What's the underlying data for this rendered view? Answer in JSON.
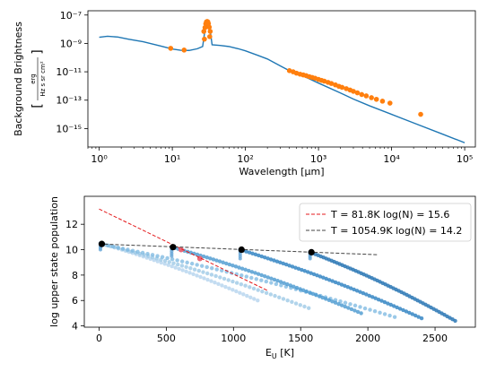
{
  "chart_data": [
    {
      "type": "line",
      "xlabel": "Wavelength [μm]",
      "ylabel": "Background Brightness",
      "ylabel_unit_num": "erg",
      "ylabel_unit_den": "Hz s sr cm²",
      "xscale": "log",
      "yscale": "log",
      "xlim": [
        0.7,
        140000
      ],
      "ylim": [
        5e-17,
        2e-07
      ],
      "x_ticks": [
        {
          "value": 1,
          "label": "10⁰"
        },
        {
          "value": 10,
          "label": "10¹"
        },
        {
          "value": 100,
          "label": "10²"
        },
        {
          "value": 1000,
          "label": "10³"
        },
        {
          "value": 10000,
          "label": "10⁴"
        },
        {
          "value": 100000,
          "label": "10⁵"
        }
      ],
      "y_ticks": [
        {
          "value": 1e-15,
          "label": "10⁻¹⁵"
        },
        {
          "value": 1e-13,
          "label": "10⁻¹³"
        },
        {
          "value": 1e-11,
          "label": "10⁻¹¹"
        },
        {
          "value": 1e-09,
          "label": "10⁻⁹"
        },
        {
          "value": 1e-07,
          "label": "10⁻⁷"
        }
      ],
      "series": [
        {
          "kind": "line",
          "color": "#1f77b4",
          "points": [
            [
              1.0,
              2.7e-09
            ],
            [
              1.3,
              3.2e-09
            ],
            [
              1.8,
              2.8e-09
            ],
            [
              2.5,
              2e-09
            ],
            [
              4,
              1.3e-09
            ],
            [
              7,
              6.5e-10
            ],
            [
              10,
              4e-10
            ],
            [
              13,
              3.3e-10
            ],
            [
              17,
              3.2e-10
            ],
            [
              22,
              4.2e-10
            ],
            [
              26,
              6e-10
            ],
            [
              28,
              9e-09
            ],
            [
              30,
              1.8e-08
            ],
            [
              33,
              8e-09
            ],
            [
              35,
              8e-10
            ],
            [
              45,
              7.2e-10
            ],
            [
              60,
              6e-10
            ],
            [
              80,
              4.2e-10
            ],
            [
              100,
              3e-10
            ],
            [
              150,
              1.4e-10
            ],
            [
              200,
              8e-11
            ],
            [
              300,
              2.6e-11
            ],
            [
              400,
              1.2e-11
            ],
            [
              600,
              5.5e-12
            ],
            [
              1000,
              1.6e-12
            ],
            [
              2000,
              3.2e-13
            ],
            [
              3000,
              1.2e-13
            ],
            [
              5000,
              4e-14
            ],
            [
              10000,
              1e-14
            ],
            [
              20000,
              2.5e-15
            ],
            [
              50000,
              4e-16
            ],
            [
              100000,
              1e-16
            ]
          ]
        },
        {
          "kind": "scatter",
          "color": "#ff7f0e",
          "points": [
            [
              9.5,
              4.5e-10
            ],
            [
              14.5,
              3.4e-10
            ],
            [
              27,
              7e-09
            ],
            [
              28,
              1.3e-08
            ],
            [
              28.7,
              2.4e-08
            ],
            [
              29.3,
              3.3e-08
            ],
            [
              30,
              3.5e-08
            ],
            [
              30.6,
              3.3e-08
            ],
            [
              31.2,
              2.5e-08
            ],
            [
              32,
              1.4e-08
            ],
            [
              33,
              7e-09
            ],
            [
              27.5,
              2e-09
            ],
            [
              32.5,
              3e-09
            ],
            [
              400,
              1.2e-11
            ],
            [
              450,
              1e-11
            ],
            [
              500,
              8e-12
            ],
            [
              560,
              6.8e-12
            ],
            [
              620,
              6e-12
            ],
            [
              680,
              5.3e-12
            ],
            [
              750,
              4.5e-12
            ],
            [
              820,
              4e-12
            ],
            [
              900,
              3.5e-12
            ],
            [
              1000,
              2.9e-12
            ],
            [
              1100,
              2.5e-12
            ],
            [
              1200,
              2.2e-12
            ],
            [
              1350,
              1.8e-12
            ],
            [
              1500,
              1.5e-12
            ],
            [
              1700,
              1.2e-12
            ],
            [
              1900,
              9.5e-13
            ],
            [
              2100,
              8e-13
            ],
            [
              2400,
              6.5e-13
            ],
            [
              2700,
              5.2e-13
            ],
            [
              3000,
              4.2e-13
            ],
            [
              3400,
              3.3e-13
            ],
            [
              3900,
              2.5e-13
            ],
            [
              4500,
              2e-13
            ],
            [
              5300,
              1.5e-13
            ],
            [
              6200,
              1.15e-13
            ],
            [
              7500,
              8.5e-14
            ],
            [
              9500,
              6.2e-14
            ],
            [
              25000,
              1e-14
            ]
          ]
        }
      ]
    },
    {
      "type": "scatter",
      "xlabel": "E_U [K]",
      "xlabel_main": "E",
      "xlabel_sub": "U",
      "xlabel_unit": " [K]",
      "ylabel": "log upper state population",
      "xlim": [
        -110,
        2800
      ],
      "ylim": [
        3.9,
        14.2
      ],
      "x_ticks": [
        0,
        500,
        1000,
        1500,
        2000,
        2500
      ],
      "y_ticks": [
        4,
        6,
        8,
        10,
        12
      ],
      "legend_position": "top-right",
      "legend": [
        {
          "style": "red-dash",
          "color": "#e41a1c",
          "label": "T = 81.8K log(N) = 15.6"
        },
        {
          "style": "gray-dash",
          "color": "#444444",
          "label": "T = 1054.9K log(N) = 14.2"
        }
      ],
      "fits": [
        {
          "color": "#e41a1c",
          "x": [
            0,
            1250
          ],
          "y": [
            13.2,
            6.8
          ]
        },
        {
          "color": "#444444",
          "x": [
            0,
            2080
          ],
          "y": [
            10.45,
            9.6
          ]
        }
      ],
      "ladders": [
        {
          "x0": 10,
          "y0": 10.5,
          "x_end": 1180,
          "y_end": 6.0,
          "count": 45,
          "color": "#b8d6ee",
          "alpha": 0.85
        },
        {
          "x0": 20,
          "y0": 10.45,
          "x_end": 1560,
          "y_end": 5.4,
          "count": 50,
          "color": "#9ec9e6",
          "alpha": 0.8
        },
        {
          "x0": 30,
          "y0": 10.4,
          "x_end": 2200,
          "y_end": 4.7,
          "count": 60,
          "color": "#7ab7e0",
          "alpha": 0.75
        },
        {
          "x0": 540,
          "y0": 10.2,
          "x_end": 1950,
          "y_end": 5.0,
          "count": 60,
          "color": "#4a98cf",
          "alpha": 0.8
        },
        {
          "x0": 1050,
          "y0": 10.0,
          "x_end": 2400,
          "y_end": 4.6,
          "count": 60,
          "color": "#2a80c0",
          "alpha": 0.8
        },
        {
          "x0": 1570,
          "y0": 9.8,
          "x_end": 2650,
          "y_end": 4.4,
          "count": 55,
          "color": "#1f6fb0",
          "alpha": 0.8
        }
      ],
      "ladder_stubs": [
        {
          "x": 10,
          "y_top": 10.5,
          "y_bottom": 10.0
        },
        {
          "x": 540,
          "y_top": 10.2,
          "y_bottom": 9.5
        },
        {
          "x": 1050,
          "y_top": 10.0,
          "y_bottom": 9.3
        },
        {
          "x": 1570,
          "y_top": 9.8,
          "y_bottom": 9.3
        }
      ],
      "highlight_points": [
        [
          610,
          10.0
        ],
        [
          750,
          9.3
        ]
      ],
      "black_points": [
        [
          20,
          10.45
        ],
        [
          550,
          10.2
        ],
        [
          1060,
          10.0
        ],
        [
          1580,
          9.8
        ]
      ]
    }
  ]
}
